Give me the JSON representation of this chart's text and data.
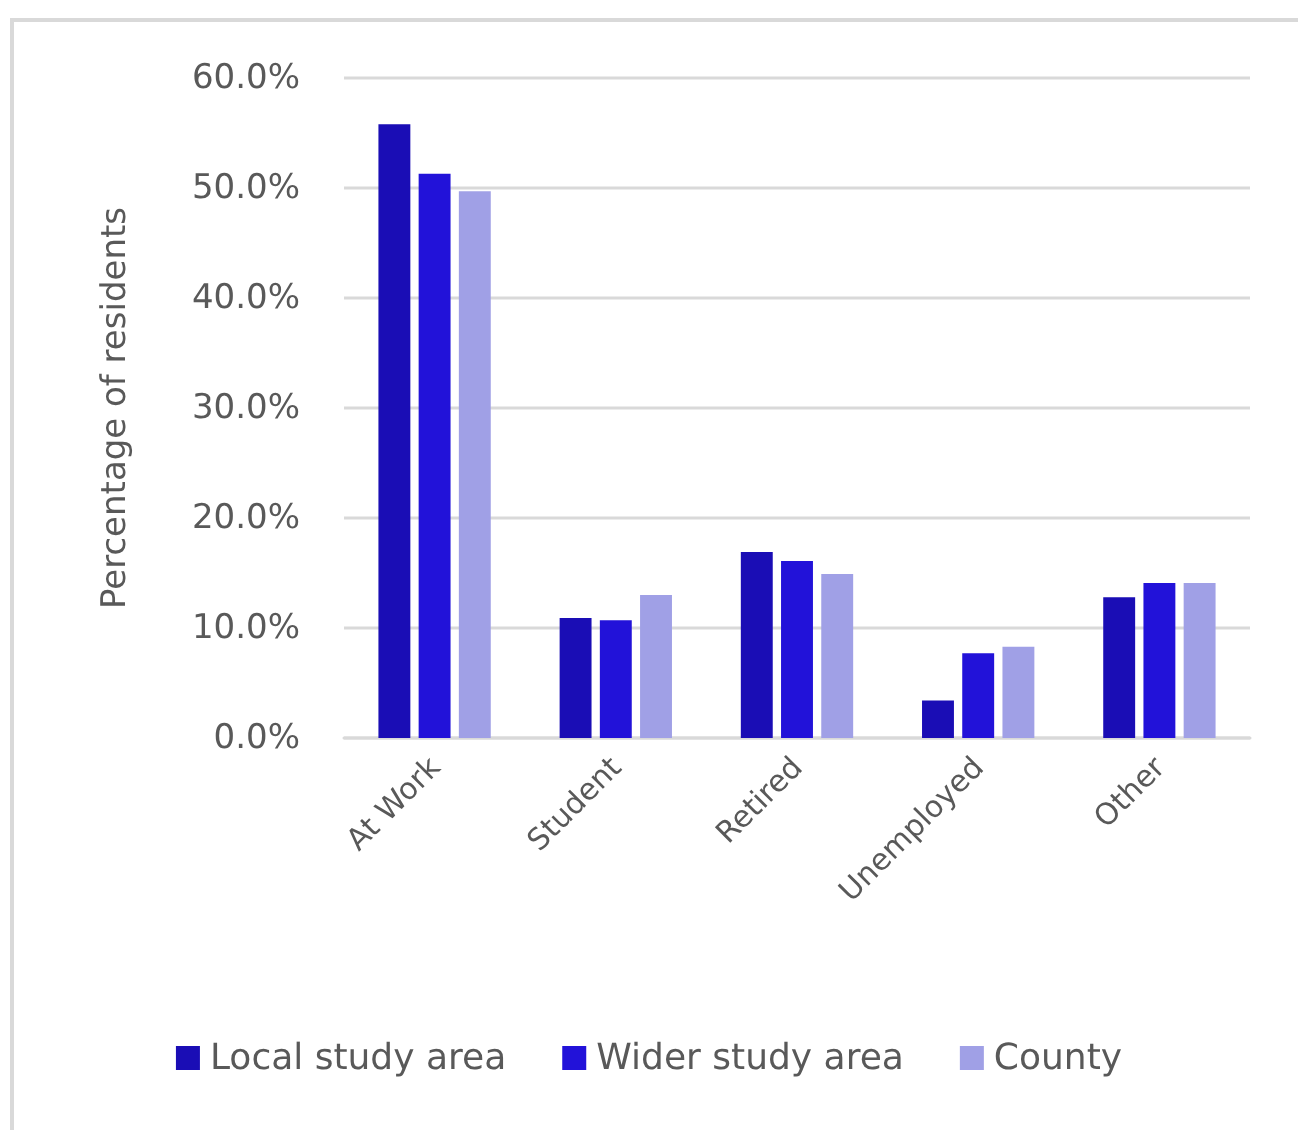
{
  "chart_data": {
    "type": "bar",
    "ylabel": "Percentage of residents",
    "categories": [
      "At Work",
      "Student",
      "Retired",
      "Unemployed",
      "Other"
    ],
    "series": [
      {
        "name": "Local study area",
        "color": "#1a0db5",
        "values": [
          55.8,
          10.9,
          16.9,
          3.4,
          12.8
        ]
      },
      {
        "name": "Wider study area",
        "color": "#2212d9",
        "values": [
          51.3,
          10.7,
          16.1,
          7.7,
          14.1
        ]
      },
      {
        "name": "County",
        "color": "#a0a0e6",
        "values": [
          49.7,
          13.0,
          14.9,
          8.3,
          14.1
        ]
      }
    ],
    "ylim": [
      0,
      60
    ],
    "yticks": [
      {
        "value": 0,
        "label": "0.0%"
      },
      {
        "value": 10,
        "label": "10.0%"
      },
      {
        "value": 20,
        "label": "20.0%"
      },
      {
        "value": 30,
        "label": "30.0%"
      },
      {
        "value": 40,
        "label": "40.0%"
      },
      {
        "value": 50,
        "label": "50.0%"
      },
      {
        "value": 60,
        "label": "60.0%"
      }
    ],
    "grid": "y",
    "legend": "bottom"
  }
}
